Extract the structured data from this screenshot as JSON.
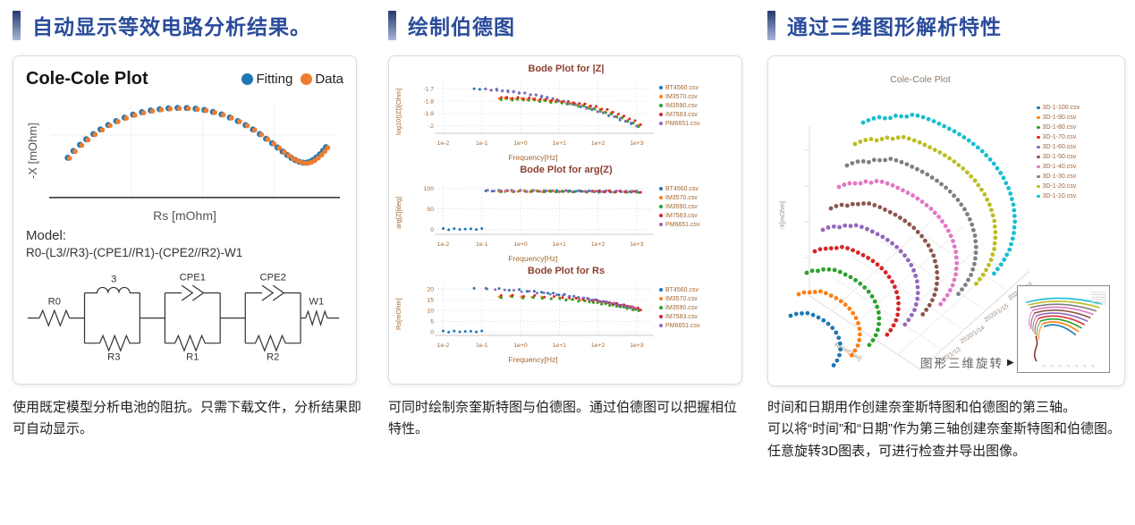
{
  "accent": {
    "heading_color": "#2a4c9b",
    "bar_top": "#24386e",
    "bar_bottom": "#a9b5d8"
  },
  "sections": [
    {
      "heading": "自动显示等效电路分析结果。",
      "caption": "使用既定模型分析电池的阻抗。只需下载文件，分析结果即可自动显示。"
    },
    {
      "heading": "绘制伯德图",
      "caption": "可同时绘制奈奎斯特图与伯德图。通过伯德图可以把握相位特性。"
    },
    {
      "heading": "通过三维图形解析特性",
      "caption_lines": [
        "时间和日期用作创建奈奎斯特图和伯德图的第三轴。",
        "可以将“时间”和“日期”作为第三轴创建奈奎斯特图和伯德图。任意旋转3D图表，可进行检查并导出图像。"
      ]
    }
  ],
  "cole_panel": {
    "title": "Cole-Cole Plot",
    "legend": [
      {
        "label": "Fitting",
        "color": "#1f77b4"
      },
      {
        "label": "Data",
        "color": "#ed7d31"
      }
    ],
    "ylabel": "-X [mOhm]",
    "xlabel": "Rs [mOhm]",
    "model_label": "Model:",
    "model_formula": "R0-(L3//R3)-(CPE1//R1)-(CPE2//R2)-W1",
    "circuit_labels": {
      "r0": "R0",
      "l3": "3",
      "cpe1": "CPE1",
      "cpe2": "CPE2",
      "w1": "W1",
      "r3": "R3",
      "r1": "R1",
      "r2": "R2"
    }
  },
  "chart_data": [
    {
      "type": "scatter",
      "title": "Cole-Cole Plot",
      "xlabel": "Rs [mOhm]",
      "ylabel": "-X [mOhm]",
      "legend_position": "top-right",
      "grid": true,
      "series": [
        {
          "name": "Fitting",
          "color": "#1f77b4"
        },
        {
          "name": "Data",
          "color": "#ed7d31"
        }
      ],
      "points": [
        [
          0.055,
          0.28
        ],
        [
          0.075,
          0.335
        ],
        [
          0.098,
          0.385
        ],
        [
          0.12,
          0.43
        ],
        [
          0.145,
          0.472
        ],
        [
          0.17,
          0.51
        ],
        [
          0.197,
          0.546
        ],
        [
          0.225,
          0.578
        ],
        [
          0.254,
          0.606
        ],
        [
          0.284,
          0.63
        ],
        [
          0.315,
          0.65
        ],
        [
          0.346,
          0.664
        ],
        [
          0.377,
          0.674
        ],
        [
          0.408,
          0.681
        ],
        [
          0.44,
          0.685
        ],
        [
          0.472,
          0.684
        ],
        [
          0.503,
          0.678
        ],
        [
          0.534,
          0.668
        ],
        [
          0.564,
          0.652
        ],
        [
          0.594,
          0.632
        ],
        [
          0.623,
          0.607
        ],
        [
          0.651,
          0.578
        ],
        [
          0.678,
          0.545
        ],
        [
          0.704,
          0.509
        ],
        [
          0.728,
          0.472
        ],
        [
          0.75,
          0.434
        ],
        [
          0.771,
          0.398
        ],
        [
          0.79,
          0.363
        ],
        [
          0.808,
          0.33
        ],
        [
          0.824,
          0.302
        ],
        [
          0.839,
          0.278
        ],
        [
          0.853,
          0.26
        ],
        [
          0.866,
          0.247
        ],
        [
          0.879,
          0.24
        ],
        [
          0.891,
          0.24
        ],
        [
          0.903,
          0.247
        ],
        [
          0.915,
          0.262
        ],
        [
          0.927,
          0.283
        ],
        [
          0.939,
          0.308
        ],
        [
          0.95,
          0.337
        ],
        [
          0.96,
          0.366
        ]
      ]
    },
    {
      "type": "scatter",
      "title": "Bode Plot for |Z|",
      "xlabel": "Frequency[Hz]",
      "ylabel": "log10(|Z|)[Ohm]",
      "xlim": [
        -2.15,
        3.35
      ],
      "ylim": [
        -2.06,
        -1.64
      ],
      "x_ticks": [
        {
          "v": -2,
          "label": "1e-2"
        },
        {
          "v": -1,
          "label": "1e-1"
        },
        {
          "v": 0,
          "label": "1e+0"
        },
        {
          "v": 1,
          "label": "1e+1"
        },
        {
          "v": 2,
          "label": "1e+2"
        },
        {
          "v": 3,
          "label": "1e+3"
        }
      ],
      "y_ticks": [
        {
          "v": -1.7,
          "label": "-1.7"
        },
        {
          "v": -1.8,
          "label": "-1.8"
        },
        {
          "v": -1.9,
          "label": "-1.9"
        },
        {
          "v": -2,
          "label": "-2"
        }
      ],
      "series": [
        {
          "file": "BT4560.csv",
          "color": "#1f77b4",
          "n": 30,
          "pts": [
            [
              -1.2,
              -1.7
            ],
            [
              -0.6,
              -1.709
            ],
            [
              0,
              -1.732
            ],
            [
              0.6,
              -1.765
            ],
            [
              1.2,
              -1.81
            ],
            [
              1.8,
              -1.864
            ],
            [
              2.4,
              -1.927
            ],
            [
              3.0,
              -2.0
            ]
          ]
        },
        {
          "file": "IM3570.csv",
          "color": "#ff7f0e",
          "n": 26,
          "pts": [
            [
              -0.55,
              -1.776
            ],
            [
              0.2,
              -1.784
            ],
            [
              0.9,
              -1.801
            ],
            [
              1.6,
              -1.832
            ],
            [
              2.2,
              -1.882
            ],
            [
              2.7,
              -1.945
            ],
            [
              3.05,
              -1.998
            ]
          ]
        },
        {
          "file": "IM3590.csv",
          "color": "#2ca02c",
          "n": 26,
          "pts": [
            [
              -0.5,
              -1.784
            ],
            [
              0.3,
              -1.793
            ],
            [
              1.0,
              -1.812
            ],
            [
              1.7,
              -1.848
            ],
            [
              2.3,
              -1.902
            ],
            [
              2.8,
              -1.962
            ],
            [
              3.05,
              -2.005
            ]
          ]
        },
        {
          "file": "IM7583.csv",
          "color": "#d62728",
          "n": 26,
          "pts": [
            [
              -0.5,
              -1.77
            ],
            [
              0.3,
              -1.779
            ],
            [
              1.0,
              -1.796
            ],
            [
              1.7,
              -1.826
            ],
            [
              2.3,
              -1.876
            ],
            [
              2.8,
              -1.938
            ],
            [
              3.1,
              -1.985
            ]
          ]
        },
        {
          "file": "PM6651.csv",
          "color": "#9467bd",
          "n": 28,
          "pts": [
            [
              -0.9,
              -1.706
            ],
            [
              -0.2,
              -1.724
            ],
            [
              0.5,
              -1.756
            ],
            [
              1.2,
              -1.812
            ],
            [
              1.9,
              -1.872
            ],
            [
              2.5,
              -1.934
            ],
            [
              3.0,
              -1.998
            ]
          ]
        }
      ]
    },
    {
      "type": "scatter",
      "title": "Bode Plot for arg(Z)",
      "xlabel": "Frequency[Hz]",
      "ylabel": "arg[Z][deg]",
      "xlim": [
        -2.15,
        3.35
      ],
      "ylim": [
        -12,
        115
      ],
      "x_ticks": [
        {
          "v": -2,
          "label": "1e-2"
        },
        {
          "v": -1,
          "label": "1e-1"
        },
        {
          "v": 0,
          "label": "1e+0"
        },
        {
          "v": 1,
          "label": "1e+1"
        },
        {
          "v": 2,
          "label": "1e+2"
        },
        {
          "v": 3,
          "label": "1e+3"
        }
      ],
      "y_ticks": [
        {
          "v": 100,
          "label": "100"
        },
        {
          "v": 50,
          "label": "50"
        },
        {
          "v": 0,
          "label": "0"
        }
      ],
      "series": [
        {
          "file": "BT4560.csv",
          "color": "#1f77b4",
          "n": 26,
          "pts": [
            [
              -0.9,
              94.5
            ],
            [
              0.5,
              94.0
            ],
            [
              1.8,
              93.5
            ],
            [
              3.0,
              92.5
            ]
          ]
        },
        {
          "file": "IM3570.csv",
          "color": "#ff7f0e",
          "n": 24,
          "pts": [
            [
              -0.55,
              93.8
            ],
            [
              0.8,
              93.2
            ],
            [
              2.0,
              92.8
            ],
            [
              3.0,
              92.0
            ]
          ]
        },
        {
          "file": "IM3590.csv",
          "color": "#2ca02c",
          "n": 24,
          "pts": [
            [
              -0.5,
              93.4
            ],
            [
              0.8,
              92.9
            ],
            [
              2.0,
              92.4
            ],
            [
              3.05,
              91.8
            ]
          ]
        },
        {
          "file": "IM7583.csv",
          "color": "#d62728",
          "n": 24,
          "pts": [
            [
              -0.5,
              94.2
            ],
            [
              0.8,
              93.6
            ],
            [
              2.0,
              93.2
            ],
            [
              3.1,
              92.2
            ]
          ]
        },
        {
          "file": "PM6651.csv",
          "color": "#9467bd",
          "n": 26,
          "pts": [
            [
              -0.85,
              94.8
            ],
            [
              0.5,
              94.2
            ],
            [
              1.8,
              93.6
            ],
            [
              3.0,
              92.4
            ]
          ]
        },
        {
          "file": null,
          "legend": false,
          "color": "#1f77b4",
          "n": 8,
          "pts": [
            [
              -2.0,
              0.8
            ],
            [
              -1.0,
              0.8
            ]
          ]
        }
      ]
    },
    {
      "type": "scatter",
      "title": "Bode Plot for Rs",
      "xlabel": "Frequency[Hz]",
      "ylabel": "Rs[mOhm]",
      "xlim": [
        -2.15,
        3.35
      ],
      "ylim": [
        -1.5,
        22.5
      ],
      "x_ticks": [
        {
          "v": -2,
          "label": "1e-2"
        },
        {
          "v": -1,
          "label": "1e-1"
        },
        {
          "v": 0,
          "label": "1e+0"
        },
        {
          "v": 1,
          "label": "1e+1"
        },
        {
          "v": 2,
          "label": "1e+2"
        },
        {
          "v": 3,
          "label": "1e+3"
        }
      ],
      "y_ticks": [
        {
          "v": 20,
          "label": "20"
        },
        {
          "v": 15,
          "label": "15"
        },
        {
          "v": 10,
          "label": "10"
        },
        {
          "v": 5,
          "label": "5"
        },
        {
          "v": 0,
          "label": "0"
        }
      ],
      "series": [
        {
          "file": "BT4560.csv",
          "color": "#1f77b4",
          "n": 30,
          "pts": [
            [
              -1.2,
              20.3
            ],
            [
              -0.6,
              20.0
            ],
            [
              0,
              19.4
            ],
            [
              0.6,
              18.4
            ],
            [
              1.2,
              17.0
            ],
            [
              1.8,
              15.2
            ],
            [
              2.4,
              13.1
            ],
            [
              3.0,
              10.8
            ]
          ]
        },
        {
          "file": "IM3570.csv",
          "color": "#ff7f0e",
          "n": 26,
          "pts": [
            [
              -0.55,
              16.6
            ],
            [
              0.2,
              16.3
            ],
            [
              0.9,
              15.8
            ],
            [
              1.6,
              14.8
            ],
            [
              2.2,
              13.2
            ],
            [
              2.7,
              11.6
            ],
            [
              3.05,
              10.2
            ]
          ]
        },
        {
          "file": "IM3590.csv",
          "color": "#2ca02c",
          "n": 26,
          "pts": [
            [
              -0.5,
              16.2
            ],
            [
              0.3,
              15.9
            ],
            [
              1.0,
              15.3
            ],
            [
              1.7,
              14.2
            ],
            [
              2.3,
              12.6
            ],
            [
              2.8,
              11.0
            ],
            [
              3.05,
              10.0
            ]
          ]
        },
        {
          "file": "IM7583.csv",
          "color": "#d62728",
          "n": 26,
          "pts": [
            [
              -0.5,
              17.0
            ],
            [
              0.3,
              16.7
            ],
            [
              1.0,
              16.2
            ],
            [
              1.7,
              15.2
            ],
            [
              2.3,
              13.6
            ],
            [
              2.8,
              12.0
            ],
            [
              3.1,
              10.6
            ]
          ]
        },
        {
          "file": "PM6651.csv",
          "color": "#9467bd",
          "n": 28,
          "pts": [
            [
              -0.9,
              20.1
            ],
            [
              -0.2,
              19.3
            ],
            [
              0.5,
              18.2
            ],
            [
              1.2,
              16.8
            ],
            [
              1.9,
              14.9
            ],
            [
              2.5,
              12.9
            ],
            [
              3.0,
              11.0
            ]
          ]
        },
        {
          "file": null,
          "legend": false,
          "color": "#1f77b4",
          "n": 8,
          "pts": [
            [
              -2.0,
              0.3
            ],
            [
              -1.0,
              0.3
            ]
          ]
        }
      ]
    },
    {
      "type": "scatter3d",
      "title": "Cole-Cole Plot",
      "legend": [
        {
          "label": "3D-1-100.csv",
          "color": "#1f77b4"
        },
        {
          "label": "3D-1-90.csv",
          "color": "#ff7f0e"
        },
        {
          "label": "3D-1-80.csv",
          "color": "#2ca02c"
        },
        {
          "label": "3D-1-70.csv",
          "color": "#d62728"
        },
        {
          "label": "3D-1-60.csv",
          "color": "#9467bd"
        },
        {
          "label": "3D-1-50.csv",
          "color": "#8c564b"
        },
        {
          "label": "3D-1-40.csv",
          "color": "#e377c2"
        },
        {
          "label": "3D-1-30.csv",
          "color": "#7f7f7f"
        },
        {
          "label": "3D-1-20.csv",
          "color": "#bcbd22"
        },
        {
          "label": "3D-1-10.csv",
          "color": "#17becf"
        }
      ],
      "axes": {
        "left_label": "-X[mOhm]",
        "bottom_label": "Rs[mOhm]",
        "date_label": "Date",
        "date_ticks": [
          "2020/1/13",
          "2020/1/14",
          "2020/1/15",
          "2020/1/16"
        ]
      },
      "base_curve": [
        [
          0,
          0
        ],
        [
          6,
          -4
        ],
        [
          12,
          -6
        ],
        [
          18,
          -4
        ],
        [
          24,
          -8
        ],
        [
          30,
          -6
        ],
        [
          36,
          -9
        ],
        [
          43,
          -6
        ],
        [
          50,
          -2
        ],
        [
          58,
          4
        ],
        [
          67,
          11
        ],
        [
          76,
          20
        ],
        [
          85,
          31
        ],
        [
          93,
          44
        ],
        [
          100,
          59
        ],
        [
          105,
          75
        ],
        [
          108,
          92
        ],
        [
          109,
          109
        ],
        [
          108,
          126
        ],
        [
          105,
          142
        ],
        [
          100,
          156
        ],
        [
          94,
          168
        ]
      ],
      "anchors": {
        "x0": 25,
        "y0": 290,
        "dx": 9,
        "dy": -24
      },
      "scale": {
        "s0": 0.33,
        "ds": 0.075,
        "x_mult": 1.55
      },
      "rotate_note": "图形三维旋转",
      "rotate_note_icon": "▶"
    }
  ]
}
